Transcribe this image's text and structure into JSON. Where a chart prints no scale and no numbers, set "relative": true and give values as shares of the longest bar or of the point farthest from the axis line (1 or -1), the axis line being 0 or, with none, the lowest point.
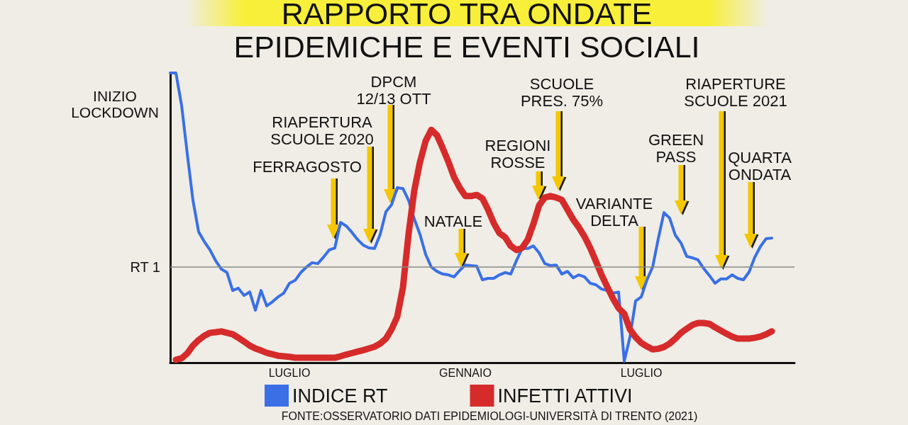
{
  "chart_data": {
    "type": "line",
    "title": "RAPPORTO TRA ONDATE\nEPIDEMICHE E EVENTI SOCIALI",
    "relative": true,
    "legend": "bottom",
    "marker": "none",
    "line_style": "solid",
    "categories": [
      null,
      null,
      null,
      null,
      null,
      null,
      null,
      null,
      null,
      null,
      null,
      null,
      null,
      null,
      null,
      null,
      null,
      null,
      null,
      null,
      null,
      "LUGLIO",
      null,
      null,
      null,
      null,
      null,
      null,
      null,
      null,
      null,
      null,
      null,
      null,
      null,
      null,
      null,
      null,
      null,
      null,
      null,
      null,
      null,
      null,
      null,
      null,
      null,
      null,
      null,
      null,
      null,
      null,
      "GENNAIO",
      null,
      null,
      null,
      null,
      null,
      null,
      null,
      null,
      null,
      null,
      null,
      null,
      null,
      null,
      null,
      null,
      null,
      null,
      null,
      null,
      null,
      null,
      null,
      null,
      null,
      null,
      null,
      null,
      null,
      null,
      "LUGLIO",
      null,
      null,
      null,
      null,
      null,
      null,
      null,
      null,
      null,
      null,
      null,
      null,
      null,
      null,
      null,
      null,
      null,
      null,
      null,
      null,
      null,
      null,
      null,
      null,
      null,
      null,
      null
    ],
    "series": [
      {
        "name": "INDICE RT",
        "color": "#3a6fe6",
        "values": [
          1.0,
          1.0,
          0.888,
          0.721,
          0.56,
          0.452,
          0.418,
          0.389,
          0.352,
          0.323,
          0.311,
          0.249,
          0.257,
          0.232,
          0.244,
          0.181,
          0.249,
          0.196,
          0.21,
          0.227,
          0.24,
          0.274,
          0.284,
          0.311,
          0.33,
          0.345,
          0.342,
          0.364,
          0.389,
          0.396,
          0.484,
          0.472,
          0.45,
          0.425,
          0.406,
          0.396,
          0.394,
          0.443,
          0.521,
          0.545,
          0.604,
          0.601,
          0.56,
          0.496,
          0.443,
          0.374,
          0.33,
          0.315,
          0.306,
          0.303,
          0.296,
          0.318,
          0.337,
          0.335,
          0.333,
          0.286,
          0.291,
          0.291,
          0.303,
          0.311,
          0.306,
          0.352,
          0.394,
          0.394,
          0.403,
          0.379,
          0.342,
          0.335,
          0.337,
          0.306,
          0.315,
          0.293,
          0.303,
          0.296,
          0.274,
          0.269,
          0.254,
          0.249,
          0.24,
          0.244,
          0.005,
          0.088,
          0.213,
          0.227,
          0.286,
          0.33,
          0.428,
          0.518,
          0.499,
          0.44,
          0.413,
          0.367,
          0.362,
          0.355,
          0.325,
          0.301,
          0.274,
          0.289,
          0.289,
          0.303,
          0.291,
          0.286,
          0.313,
          0.364,
          0.401,
          0.428,
          0.43,
          null,
          null,
          null,
          null
        ]
      },
      {
        "name": "INFETTI ATTIVI",
        "color": "#d62b2b",
        "values": [
          null,
          0.01,
          0.015,
          0.032,
          0.059,
          0.078,
          0.093,
          0.103,
          0.105,
          0.108,
          0.103,
          0.098,
          0.086,
          0.073,
          0.059,
          0.049,
          0.042,
          0.034,
          0.029,
          0.024,
          0.022,
          0.02,
          0.017,
          0.017,
          0.017,
          0.017,
          0.017,
          0.017,
          0.017,
          0.017,
          0.022,
          0.028,
          0.033,
          0.038,
          0.043,
          0.049,
          0.055,
          0.066,
          0.083,
          0.115,
          0.159,
          0.259,
          0.445,
          0.594,
          0.692,
          0.765,
          0.804,
          0.785,
          0.741,
          0.694,
          0.641,
          0.604,
          0.575,
          0.575,
          0.579,
          0.567,
          0.528,
          0.482,
          0.447,
          0.433,
          0.403,
          0.389,
          0.396,
          0.425,
          0.479,
          0.543,
          0.57,
          0.575,
          0.57,
          0.562,
          0.528,
          0.494,
          0.467,
          0.435,
          0.396,
          0.35,
          0.303,
          0.262,
          0.222,
          0.188,
          0.169,
          0.115,
          0.088,
          0.068,
          0.056,
          0.046,
          0.048,
          0.054,
          0.066,
          0.083,
          0.103,
          0.117,
          0.13,
          0.137,
          0.137,
          0.134,
          0.122,
          0.111,
          0.1,
          0.09,
          0.083,
          0.083,
          0.083,
          0.086,
          0.09,
          0.098,
          0.108,
          null,
          null,
          null,
          null
        ]
      }
    ],
    "ref_lines": [
      {
        "axis": "y",
        "value": 0.333,
        "label": "RT 1",
        "color": "#8a8a86"
      }
    ],
    "annotations": [
      "INIZIO\nLOCKDOWN",
      "FERRAGOSTO",
      "RIAPERTURA\nSCUOLE 2020",
      "DPCM\n12/13 OTT",
      "NATALE",
      "REGIONI\nROSSE",
      "SCUOLE\nPRES. 75%",
      "VARIANTE\nDELTA",
      "GREEN\nPASS",
      "RIAPERTURE\nSCUOLE 2021",
      "QUARTA\nONDATA",
      "FONTE:OSSERVATORIO DATI EPIDEMIOLOGI-UNIVERSITÀ DI TRENTO (2021)"
    ]
  }
}
